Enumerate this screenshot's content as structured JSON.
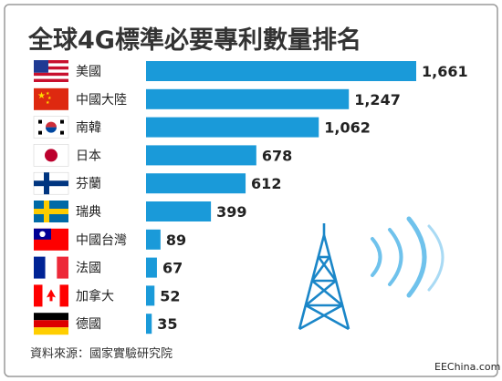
{
  "chart_data": {
    "type": "bar",
    "orientation": "horizontal",
    "title": "全球4G標準必要專利數量排名",
    "categories": [
      "美國",
      "中國大陸",
      "南韓",
      "日本",
      "芬蘭",
      "瑞典",
      "中國台灣",
      "法國",
      "加拿大",
      "德國"
    ],
    "values": [
      1661,
      1247,
      1062,
      678,
      612,
      399,
      89,
      67,
      52,
      35
    ],
    "value_labels": [
      "1,661",
      "1,247",
      "1,062",
      "678",
      "612",
      "399",
      "89",
      "67",
      "52",
      "35"
    ],
    "flags": [
      "us-flag-icon",
      "china-flag-icon",
      "south-korea-flag-icon",
      "japan-flag-icon",
      "finland-flag-icon",
      "sweden-flag-icon",
      "taiwan-flag-icon",
      "france-flag-icon",
      "canada-flag-icon",
      "germany-flag-icon"
    ],
    "bar_color": "#1a9ad9",
    "legend": "none",
    "grid": false
  },
  "source": "資料來源：國家實驗研究院",
  "credit": "EEChina.com",
  "decoration": "cell-tower-icon"
}
